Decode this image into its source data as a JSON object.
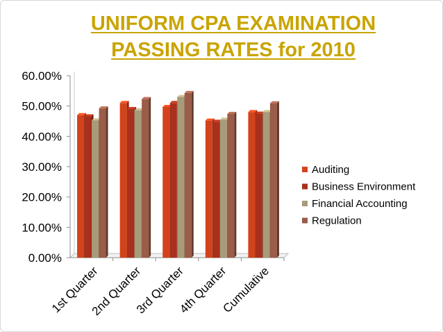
{
  "slide": {
    "title_line1": "UNIFORM CPA EXAMINATION",
    "title_line2": "PASSING RATES for 2010",
    "title_color": "#c9a400"
  },
  "chart_data": {
    "type": "bar",
    "title": "UNIFORM CPA EXAMINATION PASSING RATES for 2010",
    "xlabel": "",
    "ylabel": "",
    "categories": [
      "1st Quarter",
      "2nd Quarter",
      "3rd Quarter",
      "4th Quarter",
      "Cumulative"
    ],
    "series": [
      {
        "name": "Auditing",
        "color": "#d2431c",
        "values": [
          47.0,
          51.0,
          49.7,
          45.2,
          48.0
        ]
      },
      {
        "name": "Business Environment",
        "color": "#a8301c",
        "values": [
          46.6,
          49.0,
          51.0,
          44.8,
          47.5
        ]
      },
      {
        "name": "Financial Accounting",
        "color": "#a89b79",
        "values": [
          45.3,
          48.6,
          53.0,
          45.5,
          48.0
        ]
      },
      {
        "name": "Regulation",
        "color": "#9b5c48",
        "values": [
          49.2,
          52.3,
          54.3,
          47.4,
          50.9
        ]
      }
    ],
    "ylim": [
      0,
      60
    ],
    "yticks": [
      "0.00%",
      "10.00%",
      "20.00%",
      "30.00%",
      "40.00%",
      "50.00%",
      "60.00%"
    ],
    "grid": false,
    "legend_position": "right"
  }
}
